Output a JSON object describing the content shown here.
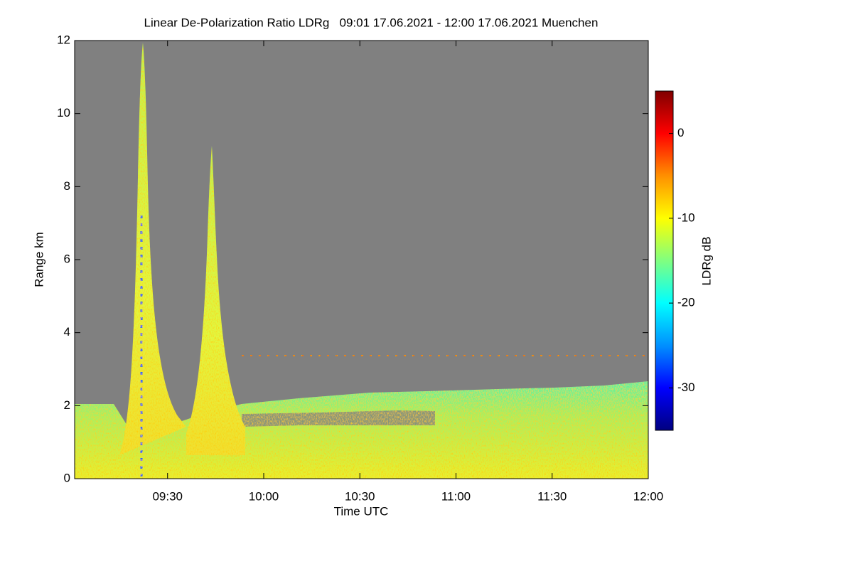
{
  "chart_data": {
    "type": "heatmap",
    "title": "Linear De-Polarization Ratio LDRg   09:01 17.06.2021 - 12:00 17.06.2021 Muenchen",
    "x_label": "Time UTC",
    "y_label": "Range km",
    "colorbar_label": "LDRg dB",
    "background": "#808080",
    "xlim": [
      9.016667,
      12
    ],
    "xticks": [
      {
        "value": 9.5,
        "label": "09:30"
      },
      {
        "value": 10,
        "label": "10:00"
      },
      {
        "value": 10.5,
        "label": "10:30"
      },
      {
        "value": 11,
        "label": "11:00"
      },
      {
        "value": 11.5,
        "label": "11:30"
      },
      {
        "value": 12,
        "label": "12:00"
      }
    ],
    "ylim": [
      0,
      12
    ],
    "yticks": [
      0,
      2,
      4,
      6,
      8,
      10,
      12
    ],
    "zlim": [
      -35,
      5
    ],
    "zticks": [
      -30,
      -20,
      -10,
      0
    ],
    "colormap": [
      "#000080",
      "#0000ff",
      "#0090ff",
      "#00ffff",
      "#80ff80",
      "#ffff00",
      "#ff9000",
      "#ff0000",
      "#800000"
    ]
  }
}
